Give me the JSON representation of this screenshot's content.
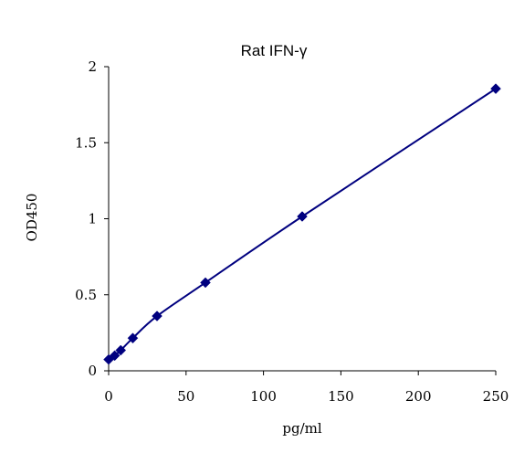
{
  "chart_data": {
    "type": "scatter",
    "title": "Rat  IFN-γ",
    "xlabel": "pg/ml",
    "ylabel": "OD450",
    "xlim": [
      0,
      250
    ],
    "ylim": [
      0,
      2
    ],
    "x_ticks": [
      0,
      50,
      100,
      150,
      200,
      250
    ],
    "y_ticks": [
      0,
      0.5,
      1,
      1.5,
      2
    ],
    "x_tick_labels": [
      "0",
      "50",
      "100",
      "150",
      "200",
      "250"
    ],
    "y_tick_labels": [
      "0",
      "0.5",
      "1",
      "1.5",
      "2"
    ],
    "grid": false,
    "legend": false,
    "series_color": "#00007f",
    "marker": "diamond",
    "line": "smooth",
    "series": [
      {
        "x": [
          0,
          3.9,
          7.8,
          15.6,
          31.25,
          62.5,
          125,
          250
        ],
        "y": [
          0.074,
          0.1,
          0.135,
          0.215,
          0.36,
          0.58,
          1.015,
          1.855
        ]
      }
    ]
  }
}
